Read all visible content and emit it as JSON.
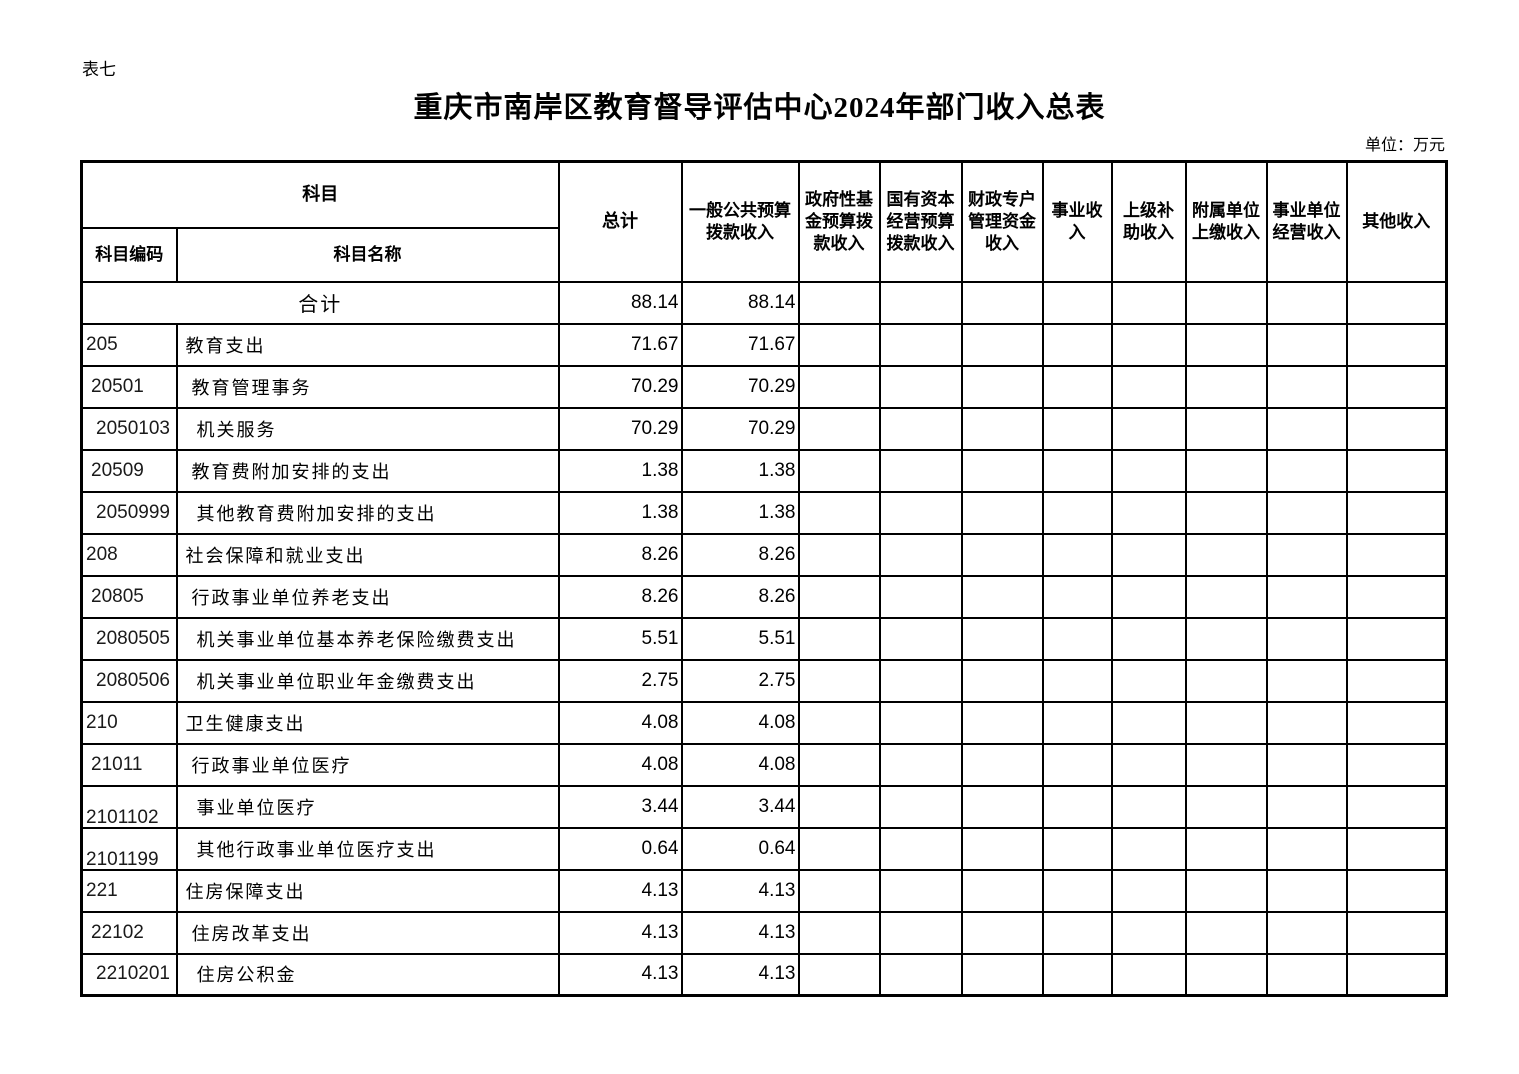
{
  "page": {
    "sheet_label": "表七",
    "title": "重庆市南岸区教育督导评估中心2024年部门收入总表",
    "unit_label": "单位：万元"
  },
  "table": {
    "header": {
      "subject": "科目",
      "subject_code": "科目编码",
      "subject_name": "科目名称",
      "value_columns": [
        "总计",
        "一般公共预算拨款收入",
        "政府性基金预算拨款收入",
        "国有资本经营预算拨款收入",
        "财政专户管理资金收入",
        "事业收入",
        "上级补助收入",
        "附属单位上缴收入",
        "事业单位经营收入",
        "其他收入"
      ]
    },
    "empty_value_column_count": 8,
    "rows": [
      {
        "code": "",
        "name": "合计",
        "is_total": true,
        "level": 0,
        "total": "88.14",
        "general_budget": "88.14"
      },
      {
        "code": "205",
        "name": "教育支出",
        "level": 1,
        "total": "71.67",
        "general_budget": "71.67"
      },
      {
        "code": "20501",
        "name": "教育管理事务",
        "level": 2,
        "total": "70.29",
        "general_budget": "70.29"
      },
      {
        "code": "2050103",
        "name": "机关服务",
        "level": 3,
        "total": "70.29",
        "general_budget": "70.29"
      },
      {
        "code": "20509",
        "name": "教育费附加安排的支出",
        "level": 2,
        "total": "1.38",
        "general_budget": "1.38"
      },
      {
        "code": "2050999",
        "name": "其他教育费附加安排的支出",
        "level": 3,
        "total": "1.38",
        "general_budget": "1.38"
      },
      {
        "code": "208",
        "name": "社会保障和就业支出",
        "level": 1,
        "total": "8.26",
        "general_budget": "8.26"
      },
      {
        "code": "20805",
        "name": "行政事业单位养老支出",
        "level": 2,
        "total": "8.26",
        "general_budget": "8.26"
      },
      {
        "code": "2080505",
        "name": "机关事业单位基本养老保险缴费支出",
        "level": 3,
        "total": "5.51",
        "general_budget": "5.51"
      },
      {
        "code": "2080506",
        "name": "机关事业单位职业年金缴费支出",
        "level": 3,
        "total": "2.75",
        "general_budget": "2.75"
      },
      {
        "code": "210",
        "name": "卫生健康支出",
        "level": 1,
        "total": "4.08",
        "general_budget": "4.08"
      },
      {
        "code": "21011",
        "name": "行政事业单位医疗",
        "level": 2,
        "total": "4.08",
        "general_budget": "4.08"
      },
      {
        "code": "2101102",
        "name": "事业单位医疗",
        "level": 3,
        "code_bottom": true,
        "total": "3.44",
        "general_budget": "3.44"
      },
      {
        "code": "2101199",
        "name": "其他行政事业单位医疗支出",
        "level": 3,
        "code_bottom": true,
        "total": "0.64",
        "general_budget": "0.64"
      },
      {
        "code": "221",
        "name": "住房保障支出",
        "level": 1,
        "total": "4.13",
        "general_budget": "4.13"
      },
      {
        "code": "22102",
        "name": "住房改革支出",
        "level": 2,
        "total": "4.13",
        "general_budget": "4.13"
      },
      {
        "code": "2210201",
        "name": "住房公积金",
        "level": 3,
        "total": "4.13",
        "general_budget": "4.13"
      }
    ]
  }
}
